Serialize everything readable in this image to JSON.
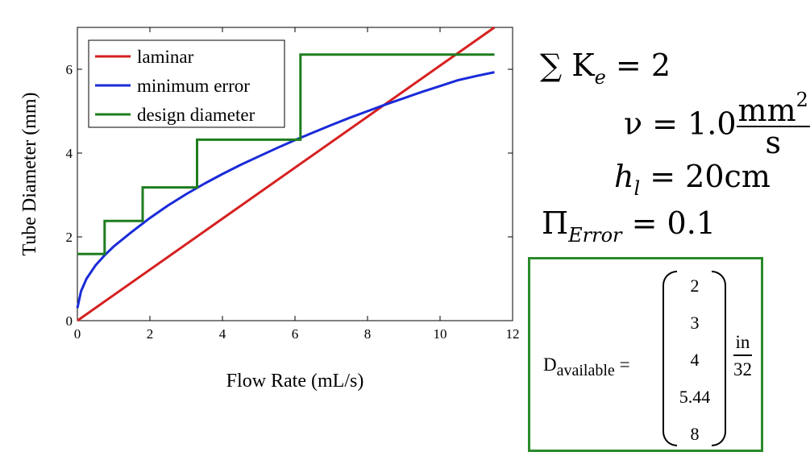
{
  "chart_data": {
    "type": "line",
    "xlabel": "Flow Rate (mL/s)",
    "ylabel": "Tube Diameter (mm)",
    "xlim": [
      0,
      12
    ],
    "ylim": [
      0,
      7
    ],
    "x_ticks": [
      "0",
      "2",
      "4",
      "6",
      "8",
      "10",
      "12"
    ],
    "y_ticks": [
      "0",
      "2",
      "4",
      "6"
    ],
    "grid": false,
    "legend_position": "top-left",
    "series": [
      {
        "name": "laminar",
        "color": "#d62020",
        "style": "line",
        "x": [
          0,
          11.5
        ],
        "y": [
          0.0,
          7.0
        ]
      },
      {
        "name": "minimum error",
        "color": "#1a2bd8",
        "style": "line",
        "x": [
          0,
          0.1,
          0.25,
          0.5,
          0.75,
          1.0,
          1.5,
          2.0,
          2.5,
          3.0,
          3.5,
          4.0,
          4.5,
          5.0,
          5.5,
          6.0,
          6.5,
          7.0,
          7.5,
          8.0,
          8.5,
          9.0,
          9.5,
          10.0,
          10.5,
          11.0,
          11.5
        ],
        "y": [
          0.3,
          0.7,
          1.0,
          1.32,
          1.56,
          1.77,
          2.12,
          2.45,
          2.75,
          3.02,
          3.27,
          3.5,
          3.72,
          3.92,
          4.12,
          4.31,
          4.49,
          4.67,
          4.84,
          5.0,
          5.16,
          5.31,
          5.46,
          5.6,
          5.74,
          5.84,
          5.93
        ]
      },
      {
        "name": "design diameter",
        "color": "#1e7d1e",
        "style": "step",
        "x": [
          0,
          0.75,
          0.75,
          1.8,
          1.8,
          3.3,
          3.3,
          6.15,
          6.15,
          11.5
        ],
        "y": [
          1.59,
          1.59,
          2.38,
          2.38,
          3.18,
          3.18,
          4.32,
          4.32,
          6.35,
          6.35
        ]
      }
    ]
  },
  "equations": {
    "sum_k": {
      "lhs": "∑ K",
      "sub": "e",
      "rhs": "= 2"
    },
    "nu": {
      "lhs": "ν = 1.0",
      "num": "mm",
      "num_sup": "2",
      "den": "s"
    },
    "hl": {
      "lhs": "h",
      "sub": "l",
      "rhs": "= 20cm"
    },
    "pi_error": {
      "lhs": "Π",
      "sub": "Error",
      "rhs": "= 0.1"
    }
  },
  "result": {
    "label": "D",
    "label_sub": "available",
    "equals": "=",
    "values": [
      "2",
      "3",
      "4",
      "5.44",
      "8"
    ],
    "unit_num": "in",
    "unit_den": "32",
    "border_color": "#2a8a2a"
  }
}
